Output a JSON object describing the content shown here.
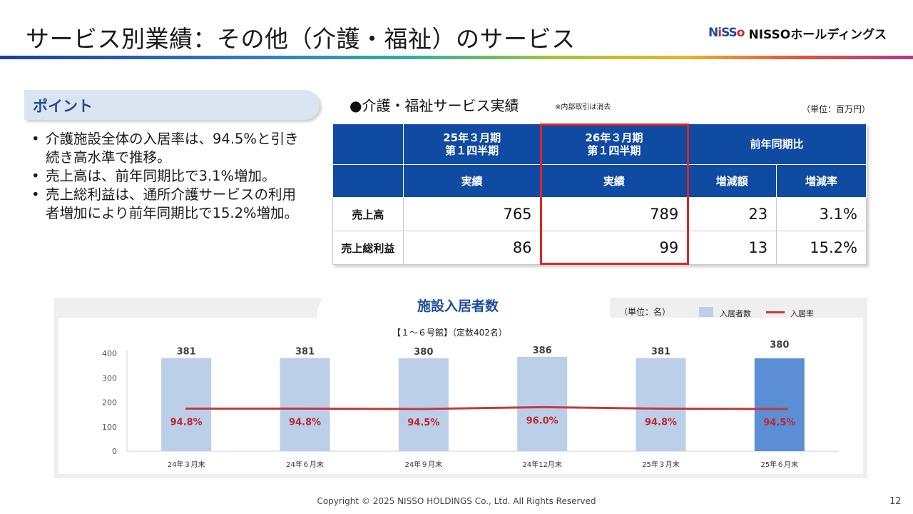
{
  "header": {
    "title": "サービス別業績：その他（介護・福祉）のサービス",
    "logo_mark": "NISSO",
    "logo_text": "NISSOホールディングス"
  },
  "points": {
    "label": "ポイント",
    "bullets": [
      "介護施設全体の入居率は、94.5%と引き続き高水準で推移。",
      "売上高は、前年同期比で3.1%増加。",
      "売上総利益は、通所介護サービスの利用者増加により前年同期比で15.2%増加。"
    ]
  },
  "results": {
    "title": "●介護・福祉サービス実績",
    "note": "※内部取引は消去",
    "unit": "（単位：百万円）",
    "col_prev": "25年３月期\n第１四半期",
    "col_curr": "26年３月期\n第１四半期",
    "col_yoy": "前年同期比",
    "sub_actual": "実績",
    "sub_diff": "増減額",
    "sub_rate": "増減率",
    "rows": [
      {
        "label": "売上高",
        "prev": "765",
        "curr": "789",
        "diff": "23",
        "rate": "3.1%"
      },
      {
        "label": "売上総利益",
        "prev": "86",
        "curr": "99",
        "diff": "13",
        "rate": "15.2%"
      }
    ]
  },
  "chart_data": {
    "type": "bar",
    "title": "施設入居者数",
    "subtitle": "【１～６号館】（定数402名）",
    "unit": "（単位：名）",
    "categories": [
      "24年３月末",
      "24年６月末",
      "24年９月末",
      "24年12月末",
      "25年３月末",
      "25年６月末"
    ],
    "series": [
      {
        "name": "入居者数",
        "type": "bar",
        "values": [
          381,
          381,
          380,
          386,
          381,
          380
        ],
        "labels": [
          "381",
          "381",
          "380",
          "386",
          "381",
          "380"
        ]
      },
      {
        "name": "入居率",
        "type": "line",
        "values": [
          94.8,
          94.8,
          94.5,
          96.0,
          94.8,
          94.5
        ],
        "labels": [
          "94.8%",
          "94.8%",
          "94.5%",
          "96.0%",
          "94.8%",
          "94.5%"
        ]
      }
    ],
    "ylim": [
      0,
      400
    ],
    "yticks": [
      "0",
      "100",
      "200",
      "300",
      "400"
    ],
    "grid": false,
    "legend": "top-right",
    "colors": {
      "bar": "#bccfe8",
      "bar_highlight": "#5a8fd6",
      "line": "#c23b3b"
    }
  },
  "footer": {
    "copyright": "Copyright © 2025 NISSO HOLDINGS Co., Ltd. All Rights Reserved",
    "page": "12"
  }
}
